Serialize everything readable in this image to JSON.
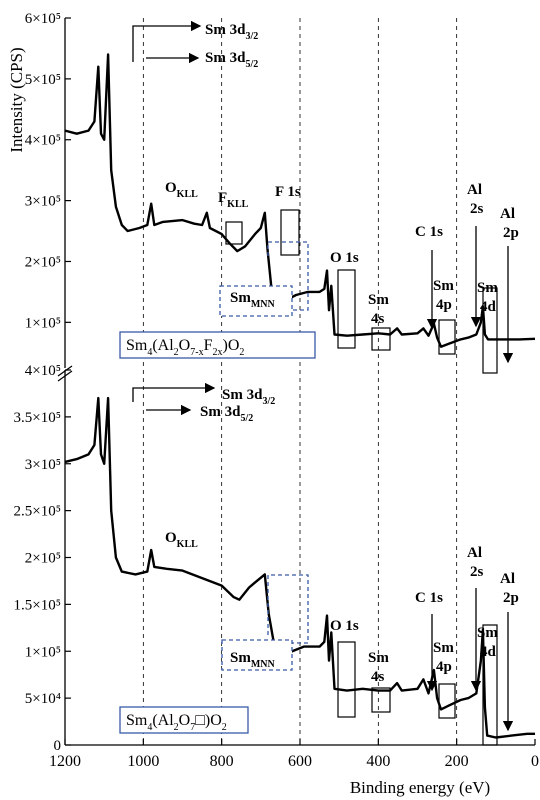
{
  "chart_data": [
    {
      "type": "line",
      "ylabel": "Intensity (CPS)",
      "xlim": [
        1200,
        0
      ],
      "ylim": [
        25000,
        600000
      ],
      "yticks": [
        {
          "value": 600000,
          "label": "6×10⁵"
        },
        {
          "value": 500000,
          "label": "5×10⁵"
        },
        {
          "value": 400000,
          "label": "4×10⁵"
        },
        {
          "value": 300000,
          "label": "3×10⁵"
        },
        {
          "value": 200000,
          "label": "2×10⁵"
        },
        {
          "value": 100000,
          "label": "1×10⁵"
        }
      ],
      "x": [
        1200,
        1170,
        1140,
        1125,
        1115,
        1108,
        1100,
        1090,
        1082,
        1070,
        1055,
        1040,
        1010,
        990,
        980,
        972,
        950,
        900,
        870,
        850,
        838,
        830,
        800,
        780,
        760,
        740,
        715,
        700,
        690,
        683,
        672,
        660,
        640,
        610,
        580,
        550,
        538,
        531,
        526,
        520,
        512,
        480,
        440,
        400,
        370,
        352,
        340,
        300,
        285,
        272,
        258,
        250,
        240,
        220,
        190,
        170,
        150,
        138,
        133,
        128,
        120,
        80,
        40,
        0
      ],
      "series": [
        {
          "color": "#000000",
          "values": [
            415000,
            410000,
            415000,
            430000,
            520000,
            410000,
            400000,
            540000,
            350000,
            290000,
            260000,
            250000,
            255000,
            260000,
            295000,
            260000,
            265000,
            268000,
            262000,
            260000,
            280000,
            255000,
            245000,
            230000,
            217000,
            225000,
            245000,
            255000,
            280000,
            220000,
            150000,
            125000,
            135000,
            145000,
            150000,
            150000,
            155000,
            185000,
            120000,
            160000,
            80000,
            78000,
            80000,
            82000,
            80000,
            90000,
            80000,
            82000,
            90000,
            78000,
            98000,
            75000,
            60000,
            65000,
            72000,
            75000,
            80000,
            100000,
            126000,
            80000,
            72000,
            72000,
            72000,
            73000
          ]
        }
      ],
      "label_parts": [
        "Sm",
        "4",
        "(Al",
        "2",
        "O",
        "7-x",
        "F",
        "2x",
        ")O",
        "2"
      ],
      "annotations": [
        {
          "lines": [
            [
              "Sm 3d",
              "3/2"
            ]
          ]
        },
        {
          "lines": [
            [
              "Sm 3d",
              "5/2"
            ]
          ]
        },
        {
          "lines": [
            [
              "O",
              "KLL"
            ]
          ]
        },
        {
          "lines": [
            [
              "F",
              "KLL"
            ]
          ]
        },
        {
          "lines": [
            [
              "F 1s"
            ]
          ]
        },
        {
          "lines": [
            [
              "Sm",
              "MNN"
            ]
          ]
        },
        {
          "lines": [
            [
              "O 1s"
            ]
          ]
        },
        {
          "lines": [
            [
              "Sm"
            ],
            [
              "4s"
            ]
          ]
        },
        {
          "lines": [
            [
              "C 1s"
            ]
          ]
        },
        {
          "lines": [
            [
              "Sm"
            ],
            [
              "4p"
            ]
          ]
        },
        {
          "lines": [
            [
              "Al"
            ],
            [
              "2s"
            ]
          ]
        },
        {
          "lines": [
            [
              "Sm"
            ],
            [
              "4d"
            ]
          ]
        },
        {
          "lines": [
            [
              "Al"
            ],
            [
              "2p"
            ]
          ]
        }
      ]
    },
    {
      "type": "line",
      "xlabel": "Binding energy (eV)",
      "xlim": [
        1200,
        0
      ],
      "xticks": [
        1200,
        1000,
        800,
        600,
        400,
        200,
        0
      ],
      "ylim": [
        0,
        400000
      ],
      "yticks": [
        {
          "value": 400000,
          "label": "4×10⁵"
        },
        {
          "value": 350000,
          "label": "3.5×10⁵"
        },
        {
          "value": 300000,
          "label": "3×10⁵"
        },
        {
          "value": 250000,
          "label": "2.5×10⁵"
        },
        {
          "value": 200000,
          "label": "2×10⁵"
        },
        {
          "value": 150000,
          "label": "1.5×10⁵"
        },
        {
          "value": 100000,
          "label": "1×10⁵"
        },
        {
          "value": 50000,
          "label": "5×10⁴"
        },
        0
      ],
      "x": [
        1200,
        1170,
        1140,
        1125,
        1115,
        1108,
        1100,
        1090,
        1082,
        1070,
        1055,
        1020,
        990,
        980,
        972,
        940,
        900,
        850,
        800,
        770,
        755,
        730,
        710,
        690,
        680,
        665,
        650,
        620,
        590,
        550,
        538,
        531,
        526,
        520,
        512,
        480,
        440,
        400,
        370,
        352,
        340,
        300,
        285,
        272,
        258,
        250,
        240,
        220,
        190,
        170,
        150,
        138,
        133,
        128,
        122,
        100,
        60,
        20,
        0
      ],
      "series": [
        {
          "color": "#000000",
          "values": [
            302000,
            305000,
            310000,
            320000,
            370000,
            310000,
            300000,
            370000,
            250000,
            200000,
            185000,
            182000,
            185000,
            208000,
            190000,
            188000,
            186000,
            178000,
            170000,
            158000,
            155000,
            168000,
            175000,
            182000,
            140000,
            105000,
            97000,
            100000,
            105000,
            105000,
            110000,
            138000,
            90000,
            120000,
            60000,
            58000,
            60000,
            58000,
            58000,
            66000,
            58000,
            60000,
            70000,
            55000,
            80000,
            50000,
            38000,
            42000,
            48000,
            50000,
            55000,
            90000,
            123000,
            40000,
            10000,
            8000,
            10000,
            12000,
            12000
          ]
        }
      ],
      "label_parts": [
        "Sm",
        "4",
        "(Al",
        "2",
        "O",
        "7",
        "□)O",
        "2"
      ],
      "annotations": [
        {
          "lines": [
            [
              "Sm 3d",
              "3/2"
            ]
          ]
        },
        {
          "lines": [
            [
              "Sm 3d",
              "5/2"
            ]
          ]
        },
        {
          "lines": [
            [
              "O",
              "KLL"
            ]
          ]
        },
        {
          "lines": [
            [
              "O 1s"
            ]
          ]
        },
        {
          "lines": [
            [
              "Sm",
              "MNN"
            ]
          ]
        },
        {
          "lines": [
            [
              "Sm"
            ],
            [
              "4s"
            ]
          ]
        },
        {
          "lines": [
            [
              "C 1s"
            ]
          ]
        },
        {
          "lines": [
            [
              "Sm"
            ],
            [
              "4p"
            ]
          ]
        },
        {
          "lines": [
            [
              "Al"
            ],
            [
              "2s"
            ]
          ]
        },
        {
          "lines": [
            [
              "Sm"
            ],
            [
              "4d"
            ]
          ]
        },
        {
          "lines": [
            [
              "Al"
            ],
            [
              "2p"
            ]
          ]
        }
      ]
    }
  ]
}
